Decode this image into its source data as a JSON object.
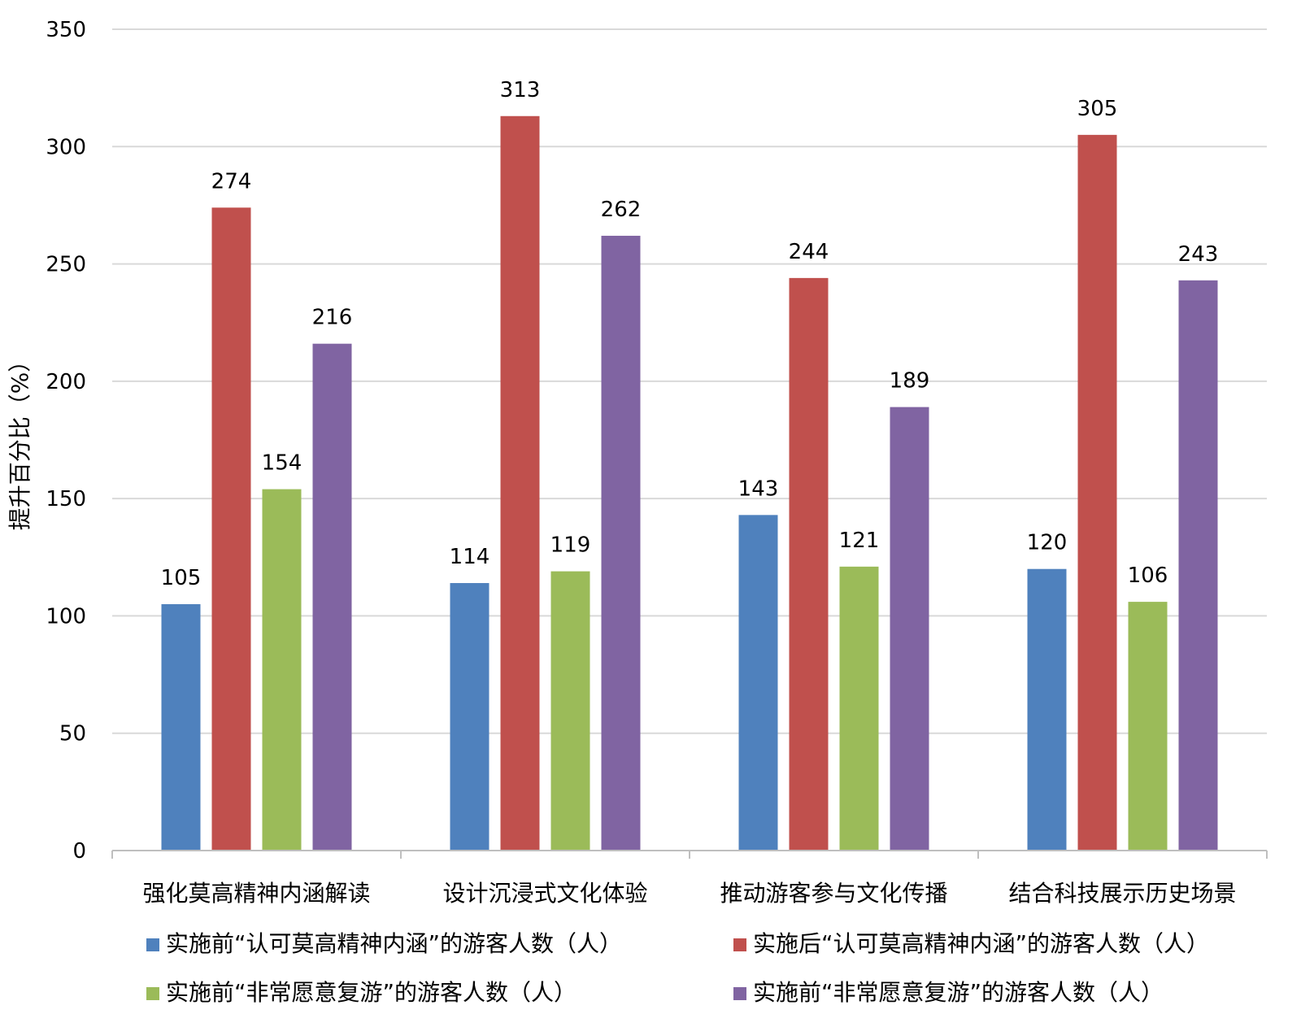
{
  "chart_data": {
    "type": "bar",
    "title": "",
    "xlabel": "",
    "ylabel": "提升百分比（%）",
    "ylim": [
      0,
      350
    ],
    "yticks": [
      0,
      50,
      100,
      150,
      200,
      250,
      300,
      350
    ],
    "grid": true,
    "legend_position": "bottom",
    "categories": [
      "强化莫高精神内涵解读",
      "设计沉浸式文化体验",
      "推动游客参与文化传播",
      "结合科技展示历史场景"
    ],
    "series": [
      {
        "name": "实施前“认可莫高精神内涵”的游客人数（人）",
        "color": "#4f81bd",
        "values": [
          105,
          114,
          143,
          120
        ]
      },
      {
        "name": "实施后“认可莫高精神内涵”的游客人数（人）",
        "color": "#c0504d",
        "values": [
          274,
          313,
          244,
          305
        ]
      },
      {
        "name": "实施前“非常愿意复游”的游客人数（人）",
        "color": "#9bbb59",
        "values": [
          154,
          119,
          121,
          106
        ]
      },
      {
        "name": "实施前“非常愿意复游”的游客人数（人）",
        "color": "#8064a2",
        "values": [
          216,
          262,
          189,
          243
        ]
      }
    ]
  }
}
